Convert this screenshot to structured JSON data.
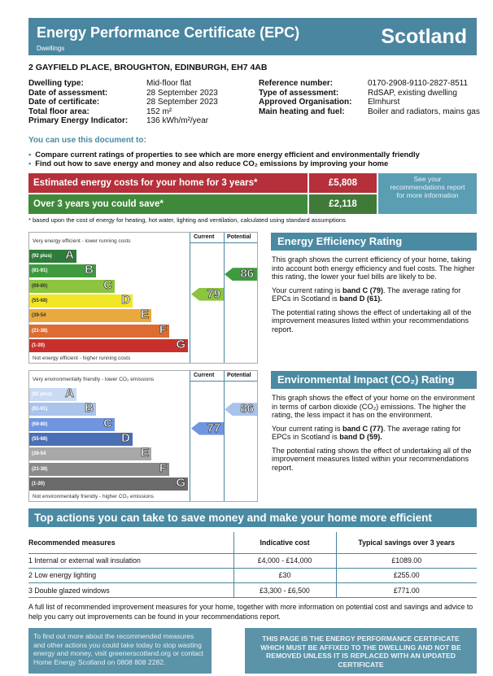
{
  "header": {
    "title": "Energy Performance Certificate (EPC)",
    "subtitle": "Dwellings",
    "region": "Scotland"
  },
  "address": "2 GAYFIELD PLACE, BROUGHTON, EDINBURGH, EH7 4AB",
  "details_left": [
    {
      "label": "Dwelling type:",
      "value": "Mid-floor flat"
    },
    {
      "label": "Date of assessment:",
      "value": "28 September 2023"
    },
    {
      "label": "Date of certificate:",
      "value": "28 September 2023"
    },
    {
      "label": "Total floor area:",
      "value": "152 m²"
    },
    {
      "label": "Primary Energy Indicator:",
      "value": "136 kWh/m²/year"
    }
  ],
  "details_right": [
    {
      "label": "Reference number:",
      "value": "0170-2908-9110-2827-8511"
    },
    {
      "label": "Type of assessment:",
      "value": "RdSAP, existing dwelling"
    },
    {
      "label": "Approved Organisation:",
      "value": "Elmhurst"
    },
    {
      "label": "Main heating and fuel:",
      "value": "Boiler and radiators, mains gas"
    }
  ],
  "use": {
    "title": "You can use this document to:",
    "bullets": [
      "Compare current ratings of properties to see which are more energy efficient and environmentally friendly",
      "Find out how to save energy and money and also reduce CO₂ emissions by improving your home"
    ]
  },
  "costs": {
    "estimated_label": "Estimated energy costs for your home for 3 years*",
    "estimated_value": "£5,808",
    "save_label": "Over 3 years you could save*",
    "save_value": "£2,118",
    "see_more": "See your recommendations report for more information",
    "footnote": "* based upon the cost of energy for heating, hot water, lighting and ventilation, calculated using standard assumptions"
  },
  "energy_chart": {
    "top": "Very energy efficient - lower running costs",
    "bottom": "Not energy efficient - higher running costs",
    "current_label": "Current",
    "potential_label": "Potential",
    "current": 79,
    "potential": 86,
    "current_color": "#8cc43f",
    "potential_color": "#3f9a3f",
    "bands": [
      {
        "range": "(92 plus)",
        "letter": "A",
        "color": "#2f7c3a"
      },
      {
        "range": "(81-91)",
        "letter": "B",
        "color": "#3f9a3f"
      },
      {
        "range": "(69-80)",
        "letter": "C",
        "color": "#8cc43f"
      },
      {
        "range": "(55-68)",
        "letter": "D",
        "color": "#f2e627"
      },
      {
        "range": "(39-54",
        "letter": "E",
        "color": "#e9a93c"
      },
      {
        "range": "(21-38)",
        "letter": "F",
        "color": "#dd6c32"
      },
      {
        "range": "(1-20)",
        "letter": "G",
        "color": "#c9302c"
      }
    ]
  },
  "env_chart": {
    "top": "Very environmentally friendly - lower CO₂ emissions",
    "bottom": "Not environmentally friendly - higher CO₂ emissions",
    "current_label": "Current",
    "potential_label": "Potential",
    "current": 77,
    "potential": 86,
    "current_color": "#6f95e0",
    "potential_color": "#a9c3ea",
    "bands": [
      {
        "range": "(92 plus)",
        "letter": "A",
        "color": "#c9daf2"
      },
      {
        "range": "(81-91)",
        "letter": "B",
        "color": "#a9c3ea"
      },
      {
        "range": "(69-80)",
        "letter": "C",
        "color": "#6f95e0"
      },
      {
        "range": "(55-68)",
        "letter": "D",
        "color": "#4a6fb5"
      },
      {
        "range": "(39-54",
        "letter": "E",
        "color": "#a8a8a8"
      },
      {
        "range": "(21-38)",
        "letter": "F",
        "color": "#8a8a8a"
      },
      {
        "range": "(1-20)",
        "letter": "G",
        "color": "#6b6b6b"
      }
    ]
  },
  "ee_panel": {
    "title": "Energy Efficiency Rating",
    "p1": "This graph shows the current efficiency of your home, taking into account both energy efficiency and fuel costs. The higher this rating, the lower your fuel bills are likely to be.",
    "p2a": "Your current rating is ",
    "p2b": "band C (79)",
    "p2c": ". The average rating for EPCs in Scotland is ",
    "p2d": "band D (61).",
    "p3": "The potential rating shows the effect of undertaking all of the improvement measures listed within your recommendations report."
  },
  "ei_panel": {
    "title": "Environmental Impact (CO₂) Rating",
    "p1": "This graph shows the effect of your home on the environment in terms of carbon dioxide (CO₂) emissions. The higher the rating, the less impact it has on the environment.",
    "p2a": "Your current rating is ",
    "p2b": "band C (77)",
    "p2c": ". The average rating for EPCs in Scotland is ",
    "p2d": "band D (59).",
    "p3": "The potential rating shows the effect of undertaking all of the improvement measures listed within your recommendations report."
  },
  "actions": {
    "title": "Top actions you can take to save money and make your home more efficient",
    "headers": [
      "Recommended measures",
      "Indicative cost",
      "Typical savings over 3 years"
    ],
    "rows": [
      [
        "1 Internal or external wall insulation",
        "£4,000 - £14,000",
        "£1089.00"
      ],
      [
        "2 Low energy lighting",
        "£30",
        "£255.00"
      ],
      [
        "3 Double glazed windows",
        "£3,300 - £6,500",
        "£771.00"
      ]
    ],
    "full_list": "A full list of recommended improvement measures for your home, together with more information on potential cost and savings and advice to help you carry out improvements can be found in your recommendations report."
  },
  "footer": {
    "left": "To find out more about the recommended measures and other actions you could take today to stop wasting energy and money, visit greenerscotland.org or contact Home Energy Scotland on 0808 808 2282.",
    "right": "THIS PAGE IS THE ENERGY PERFORMANCE CERTIFICATE WHICH MUST BE AFFIXED TO THE DWELLING AND NOT BE REMOVED UNLESS IT IS REPLACED WITH AN UPDATED CERTIFICATE"
  }
}
